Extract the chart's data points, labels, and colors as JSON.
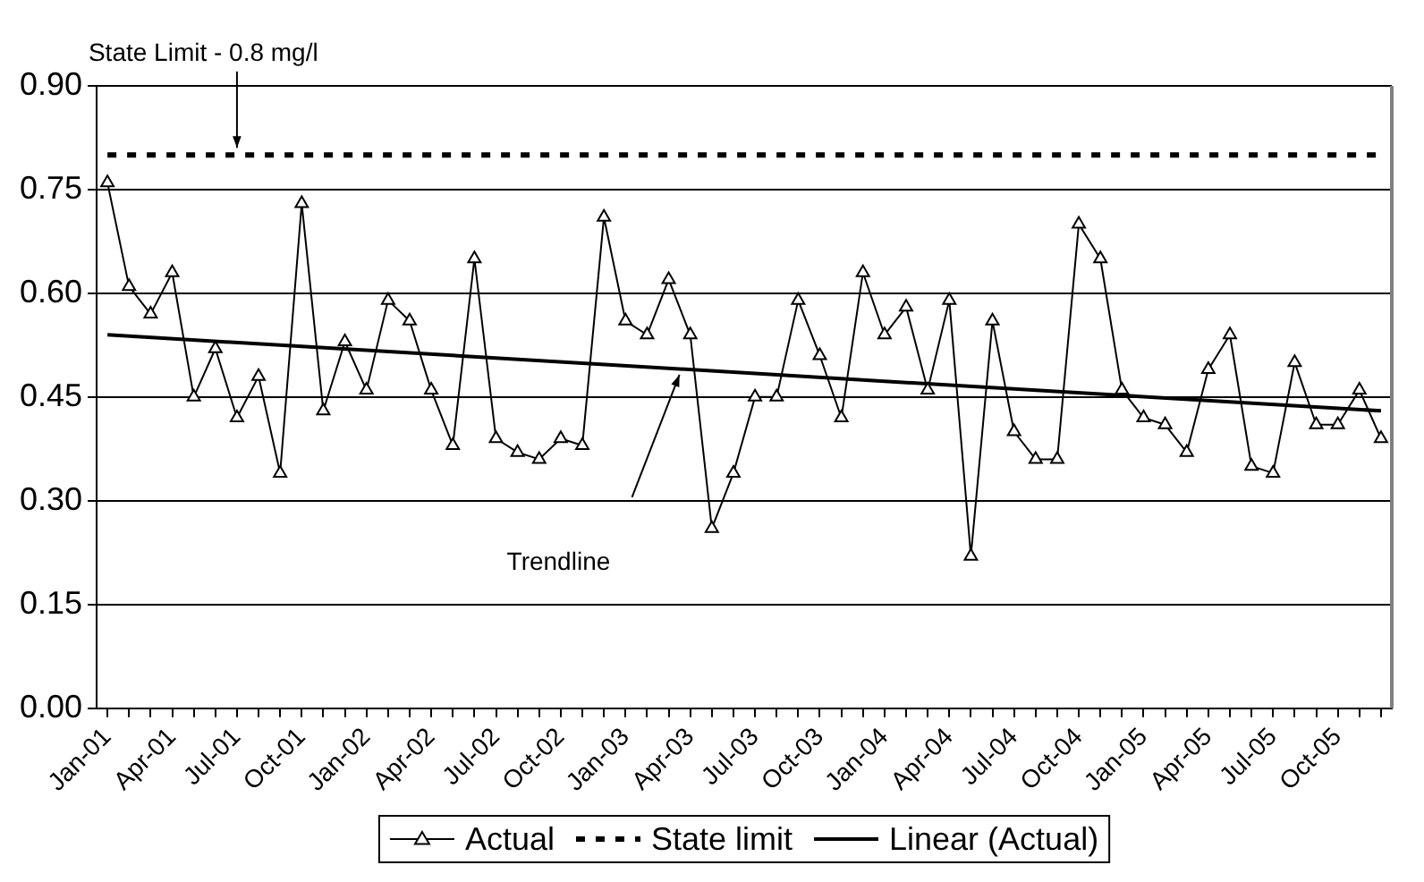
{
  "chart_data": {
    "type": "line",
    "categories": [
      "Jan-01",
      null,
      null,
      "Apr-01",
      null,
      null,
      "Jul-01",
      null,
      null,
      "Oct-01",
      null,
      null,
      "Jan-02",
      null,
      null,
      "Apr-02",
      null,
      null,
      "Jul-02",
      null,
      null,
      "Oct-02",
      null,
      null,
      "Jan-03",
      null,
      null,
      "Apr-03",
      null,
      null,
      "Jul-03",
      null,
      null,
      "Oct-03",
      null,
      null,
      "Jan-04",
      null,
      null,
      "Apr-04",
      null,
      null,
      "Jul-04",
      null,
      null,
      "Oct-04",
      null,
      null,
      "Jan-05",
      null,
      null,
      "Apr-05",
      null,
      null,
      "Jul-05",
      null,
      null,
      "Oct-05",
      null,
      null
    ],
    "series": [
      {
        "name": "Actual",
        "color": "#000000",
        "marker": "triangle",
        "line_style": "solid",
        "values": [
          0.76,
          0.61,
          0.57,
          0.63,
          0.45,
          0.52,
          0.42,
          0.48,
          0.34,
          0.73,
          0.43,
          0.53,
          0.46,
          0.59,
          0.56,
          0.46,
          0.38,
          0.65,
          0.39,
          0.37,
          0.36,
          0.39,
          0.38,
          0.71,
          0.56,
          0.54,
          0.62,
          0.54,
          0.26,
          0.34,
          0.45,
          0.45,
          0.59,
          0.51,
          0.42,
          0.63,
          0.54,
          0.58,
          0.46,
          0.59,
          0.22,
          0.56,
          0.4,
          0.36,
          0.36,
          0.7,
          0.65,
          0.46,
          0.42,
          0.41,
          0.37,
          0.49,
          0.54,
          0.35,
          0.34,
          0.5,
          0.41,
          0.41,
          0.46,
          0.39
        ]
      },
      {
        "name": "State limit",
        "color": "#000000",
        "marker": "none",
        "line_style": "dotted",
        "values": [
          0.8,
          0.8,
          0.8,
          0.8,
          0.8,
          0.8,
          0.8,
          0.8,
          0.8,
          0.8,
          0.8,
          0.8,
          0.8,
          0.8,
          0.8,
          0.8,
          0.8,
          0.8,
          0.8,
          0.8,
          0.8,
          0.8,
          0.8,
          0.8,
          0.8,
          0.8,
          0.8,
          0.8,
          0.8,
          0.8,
          0.8,
          0.8,
          0.8,
          0.8,
          0.8,
          0.8,
          0.8,
          0.8,
          0.8,
          0.8,
          0.8,
          0.8,
          0.8,
          0.8,
          0.8,
          0.8,
          0.8,
          0.8,
          0.8,
          0.8,
          0.8,
          0.8,
          0.8,
          0.8,
          0.8,
          0.8,
          0.8,
          0.8,
          0.8,
          0.8
        ]
      },
      {
        "name": "Linear (Actual)",
        "color": "#000000",
        "marker": "none",
        "line_style": "solid",
        "values": [
          0.54,
          null,
          null,
          null,
          null,
          null,
          null,
          null,
          null,
          null,
          null,
          null,
          null,
          null,
          null,
          null,
          null,
          null,
          null,
          null,
          null,
          null,
          null,
          null,
          null,
          null,
          null,
          null,
          null,
          null,
          null,
          null,
          null,
          null,
          null,
          null,
          null,
          null,
          null,
          null,
          null,
          null,
          null,
          null,
          null,
          null,
          null,
          null,
          null,
          null,
          null,
          null,
          null,
          null,
          null,
          null,
          null,
          null,
          null,
          0.43
        ]
      }
    ],
    "ylim": [
      0,
      0.9
    ],
    "yticks": [
      {
        "value": 0,
        "label": "0.00"
      },
      {
        "value": 0.15,
        "label": "0.15"
      },
      {
        "value": 0.3,
        "label": "0.30"
      },
      {
        "value": 0.45,
        "label": "0.45"
      },
      {
        "value": 0.6,
        "label": "0.60"
      },
      {
        "value": 0.75,
        "label": "0.75"
      },
      {
        "value": 0.9,
        "label": "0.90"
      }
    ],
    "grid": "y",
    "legend": "bottom",
    "annotations": [
      {
        "text": "State Limit - 0.8 mg/l",
        "x": "Jul-01",
        "y": 0.8
      },
      "Trendline"
    ]
  }
}
